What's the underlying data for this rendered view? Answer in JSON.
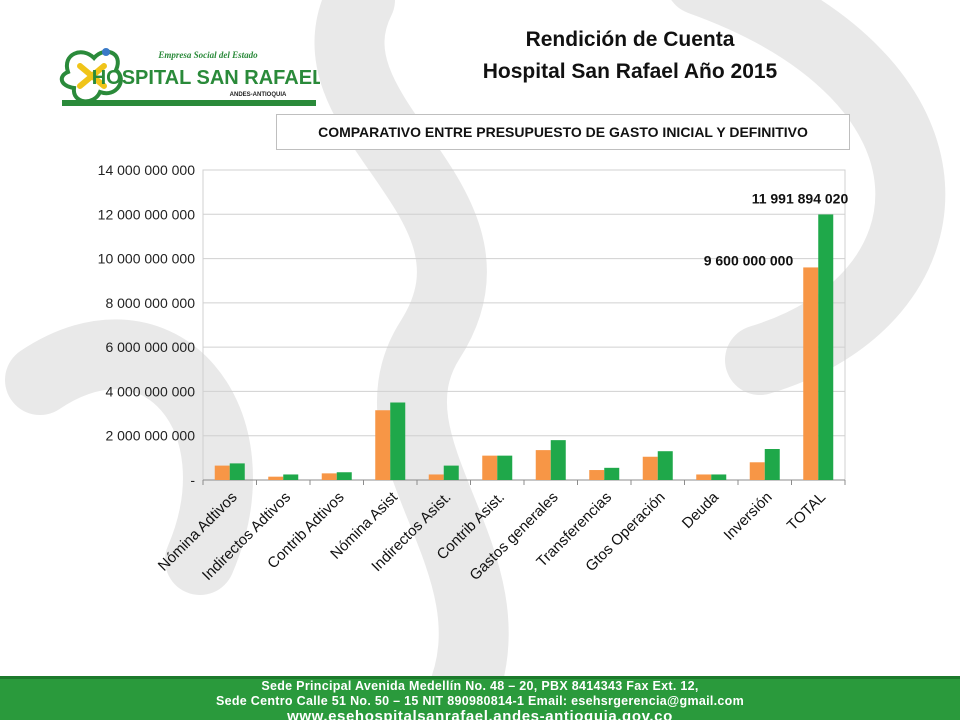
{
  "header": {
    "title_line1": "Rendición de Cuenta",
    "title_line2": "Hospital San Rafael Año 2015"
  },
  "logo": {
    "line1": "Empresa Social del Estado",
    "line2": "HOSPITAL SAN RAFAEL",
    "line3": "ANDES-ANTIOQUIA",
    "band_color": "#2a8a3a",
    "accent_color": "#f0c419"
  },
  "chart_data": {
    "type": "bar",
    "title": "COMPARATIVO ENTRE  PRESUPUESTO DE GASTO INICIAL  Y DEFINITIVO",
    "categories": [
      "Nómina Adtivos",
      "Indirectos Adtivos",
      "Contrib Adtivos",
      "Nómina Asist",
      "Indirectos Asist.",
      "Contrib Asist.",
      "Gastos generales",
      "Transferencias",
      "Gtos Operación",
      "Deuda",
      "Inversión",
      "TOTAL"
    ],
    "series": [
      {
        "color": "#f79646",
        "values": [
          650000000,
          150000000,
          300000000,
          3150000000,
          250000000,
          1100000000,
          1350000000,
          450000000,
          1050000000,
          250000000,
          800000000,
          9600000000
        ]
      },
      {
        "color": "#1fa84a",
        "values": [
          750000000,
          250000000,
          350000000,
          3500000000,
          650000000,
          1100000000,
          1800000000,
          550000000,
          1300000000,
          250000000,
          1400000000,
          11991894020
        ]
      }
    ],
    "ylim": [
      0,
      14000000000
    ],
    "ytick_labels": [
      "-",
      "2 000 000 000",
      "4 000 000 000",
      "6 000 000 000",
      "8 000 000 000",
      "10 000 000 000",
      "12 000 000 000",
      "14 000 000 000"
    ],
    "data_labels": [
      "9 600 000 000",
      "11 991 894 020"
    ],
    "grid": true
  },
  "footer": {
    "line1": "Sede Principal Avenida Medellín No. 48 – 20, PBX 8414343 Fax Ext. 12,",
    "line2": "Sede Centro Calle 51 No. 50 – 15 NIT 890980814-1 Email: esehsrgerencia@gmail.com",
    "line3": "www.esehospitalsanrafael.andes-antioquia.gov.co"
  }
}
